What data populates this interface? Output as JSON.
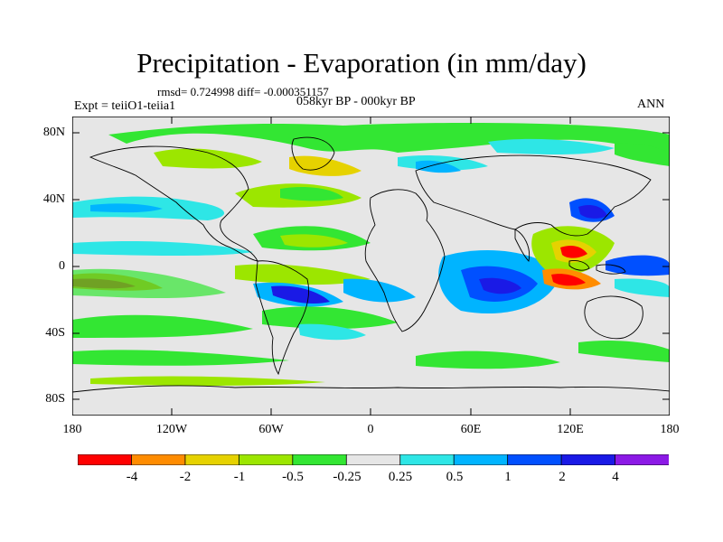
{
  "title": "Precipitation - Evaporation (in mm/day)",
  "stats": "rmsd= 0.724998 diff= -0.000351157",
  "experiment": "Expt = teiiO1-teiia1",
  "period": "058kyr BP - 000kyr BP",
  "season": "ANN",
  "lat_ticks": [
    "80N",
    "40N",
    "0",
    "40S",
    "80S"
  ],
  "lon_ticks": [
    "180",
    "120W",
    "60W",
    "0",
    "60E",
    "120E",
    "180"
  ],
  "colorbar": {
    "labels": [
      "-4",
      "-2",
      "-1",
      "-0.5",
      "-0.25",
      "0.25",
      "0.5",
      "1",
      "2",
      "4"
    ],
    "colors": [
      "#ff0000",
      "#ff8c00",
      "#e6d200",
      "#9ce600",
      "#33e633",
      "#e6e6e6",
      "#2ee6e6",
      "#00b4ff",
      "#0050ff",
      "#1a1ae6",
      "#8c1ae6"
    ]
  }
}
